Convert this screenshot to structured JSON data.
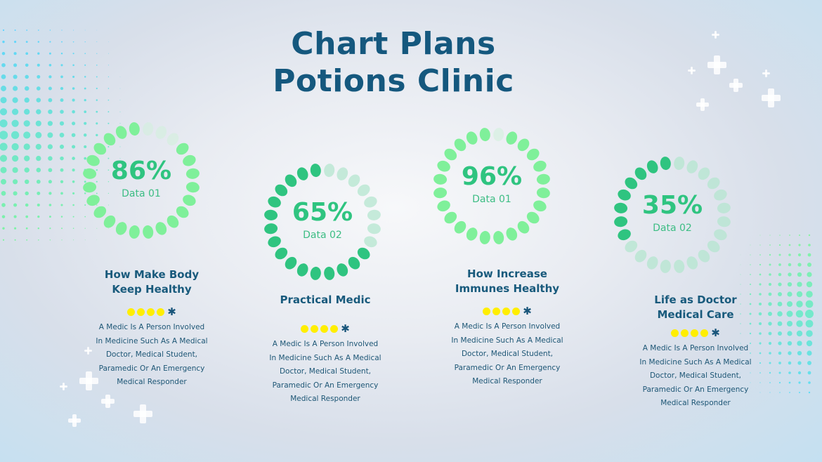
{
  "title": {
    "line1": "Chart Plans",
    "line2": "Potions Clinic"
  },
  "colors": {
    "title": "#15587e",
    "percent_text": "#2fc480",
    "ring_light_active": "#7ff09a",
    "ring_dark_active": "#2fc480",
    "ring_inactive": "#b4e5cf",
    "star": "#ffee00",
    "asterisk": "#18557a",
    "body_text": "#1d5675"
  },
  "chart_data": {
    "type": "radial-progress",
    "title": "Chart Plans Potions Clinic",
    "items": [
      {
        "label": "How Make Body Keep Healthy",
        "value": 86,
        "value_label": "86%",
        "sub_label": "Data 01"
      },
      {
        "label": "Practical Medic",
        "value": 65,
        "value_label": "65%",
        "sub_label": "Data 02"
      },
      {
        "label": "How Increase Immunes Healthy",
        "value": 96,
        "value_label": "96%",
        "sub_label": "Data 01"
      },
      {
        "label": "Life as Doctor Medical Care",
        "value": 35,
        "value_label": "35%",
        "sub_label": "Data 02"
      }
    ],
    "segments_per_ring": 24,
    "range": [
      0,
      100
    ]
  },
  "cards": [
    {
      "percent": "86%",
      "sub": "Data 01",
      "heading_1": "How Make Body",
      "heading_2": "Keep Healthy",
      "rating_dots": 4,
      "body_1": "A Medic Is A Person Involved",
      "body_2": "In Medicine Such As A Medical",
      "body_3": "Doctor, Medical Student,",
      "body_4": "Paramedic Or An Emergency",
      "body_5": "Medical Responder"
    },
    {
      "percent": "65%",
      "sub": "Data 02",
      "heading_1": "Practical Medic",
      "heading_2": "",
      "rating_dots": 4,
      "body_1": "A Medic Is A Person Involved",
      "body_2": "In Medicine Such As A Medical",
      "body_3": "Doctor, Medical Student,",
      "body_4": "Paramedic Or An Emergency",
      "body_5": "Medical Responder"
    },
    {
      "percent": "96%",
      "sub": "Data 01",
      "heading_1": "How Increase",
      "heading_2": "Immunes Healthy",
      "rating_dots": 4,
      "body_1": "A Medic Is A Person Involved",
      "body_2": "In Medicine Such As A Medical",
      "body_3": "Doctor, Medical Student,",
      "body_4": "Paramedic Or An Emergency",
      "body_5": "Medical Responder"
    },
    {
      "percent": "35%",
      "sub": "Data 02",
      "heading_1": "Life as Doctor",
      "heading_2": "Medical Care",
      "rating_dots": 4,
      "body_1": "A Medic Is A Person Involved",
      "body_2": "In Medicine Such As A Medical",
      "body_3": "Doctor, Medical Student,",
      "body_4": "Paramedic Or An Emergency",
      "body_5": "Medical Responder"
    }
  ],
  "icons": {
    "rating_marker": "✱",
    "decor": "medical-cross-icon"
  }
}
